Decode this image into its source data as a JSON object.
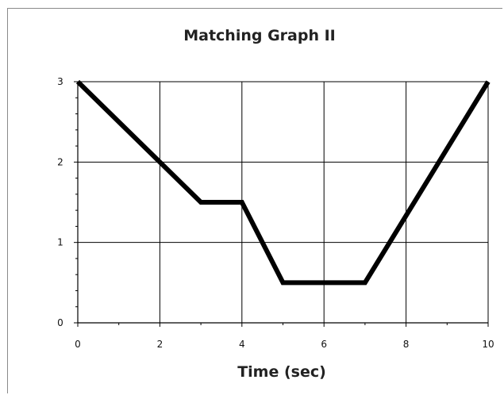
{
  "chart_data": {
    "type": "line",
    "title": "Matching Graph II",
    "xlabel": "Time (sec)",
    "ylabel": "",
    "xlim": [
      0,
      10
    ],
    "ylim": [
      0,
      3
    ],
    "xticks": [
      0,
      2,
      4,
      6,
      8,
      10
    ],
    "yticks": [
      0,
      1,
      2,
      3
    ],
    "grid": true,
    "legend": "none",
    "series": [
      {
        "x": [
          0,
          3,
          4,
          5,
          7,
          10
        ],
        "y": [
          3,
          1.5,
          1.5,
          0.5,
          0.5,
          3
        ],
        "color": "#000000"
      }
    ]
  }
}
